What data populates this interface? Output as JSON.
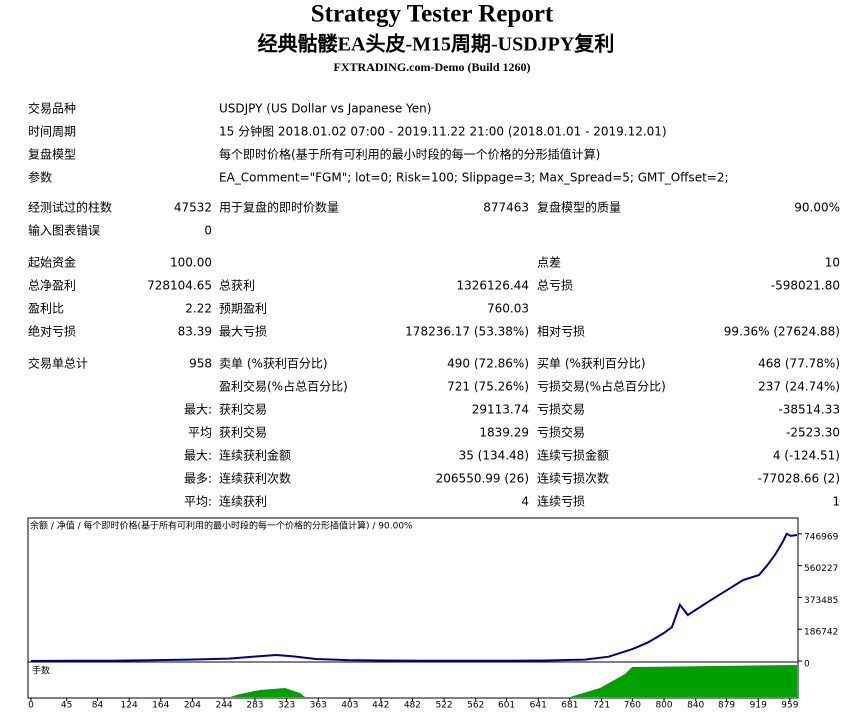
{
  "header": {
    "title": "Strategy Tester Report",
    "subtitle": "经典骷髅EA头皮-M15周期-USDJPY复利",
    "build": "FXTRADING.com-Demo (Build 1260)"
  },
  "settings": {
    "rows": [
      {
        "label": "交易品种",
        "value": "USDJPY (US Dollar vs Japanese Yen)"
      },
      {
        "label": "时间周期",
        "value": "15 分钟图 2018.01.02 07:00 - 2019.11.22 21:00 (2018.01.01 - 2019.12.01)"
      },
      {
        "label": "复盘模型",
        "value": "每个即时价格(基于所有可利用的最小时段的每一个价格的分形插值计算)"
      },
      {
        "label": "参数",
        "value": "EA_Comment=\"FGM\"; lot=0; Risk=100; Slippage=3; Max_Spread=5; GMT_Offset=2;"
      }
    ]
  },
  "stats": {
    "rows": [
      [
        {
          "label": "经测试过的柱数",
          "value": "47532"
        },
        {
          "label": "用于复盘的即时价数量",
          "value": "877463"
        },
        {
          "label": "复盘模型的质量",
          "value": "90.00%"
        }
      ],
      [
        {
          "label": "输入图表错误",
          "value": "0"
        },
        null,
        null
      ],
      [
        {
          "label": "起始资金",
          "value": "100.00"
        },
        null,
        {
          "label": "点差",
          "value": "10"
        }
      ],
      [
        {
          "label": "总净盈利",
          "value": "728104.65"
        },
        {
          "label": "总获利",
          "value": "1326126.44"
        },
        {
          "label": "总亏损",
          "value": "-598021.80"
        }
      ],
      [
        {
          "label": "盈利比",
          "value": "2.22"
        },
        {
          "label": "预期盈利",
          "value": "760.03"
        },
        null
      ],
      [
        {
          "label": "绝对亏损",
          "value": "83.39"
        },
        {
          "label": "最大亏损",
          "value": "178236.17 (53.38%)"
        },
        {
          "label": "相对亏损",
          "value": "99.36% (27624.88)"
        }
      ],
      [
        {
          "label": "交易单总计",
          "value": "958"
        },
        {
          "label": "卖单 (%获利百分比)",
          "value": "490 (72.86%)"
        },
        {
          "label": "买单 (%获利百分比)",
          "value": "468 (77.78%)"
        }
      ],
      [
        null,
        {
          "label": "盈利交易(%占总百分比)",
          "value": "721 (75.26%)"
        },
        {
          "label": "亏损交易(%占总百分比)",
          "value": "237 (24.74%)"
        }
      ],
      [
        {
          "label": "最大:"
        },
        {
          "label": "获利交易",
          "value": "29113.74"
        },
        {
          "label": "亏损交易",
          "value": "-38514.33"
        }
      ],
      [
        {
          "label": "平均"
        },
        {
          "label": "获利交易",
          "value": "1839.29"
        },
        {
          "label": "亏损交易",
          "value": "-2523.30"
        }
      ],
      [
        {
          "label": "最大:"
        },
        {
          "label": "连续获利金额",
          "value": "35 (134.48)"
        },
        {
          "label": "连续亏损金额",
          "value": "4 (-124.51)"
        }
      ],
      [
        {
          "label": "最多:"
        },
        {
          "label": "连续获利次数",
          "value": "206550.99 (26)"
        },
        {
          "label": "连续亏损次数",
          "value": "-77028.66 (2)"
        }
      ],
      [
        {
          "label": "平均:"
        },
        {
          "label": "连续获利",
          "value": "4"
        },
        {
          "label": "连续亏损",
          "value": "1"
        }
      ]
    ]
  },
  "chart_data": {
    "type": "line",
    "legend": "余额 / 净值 / 每个即时价格(基于所有可利用的最小时段的每一个价格的分形插值计算) / 90.00%",
    "volume_label": "手数",
    "x": [
      0,
      50,
      100,
      150,
      200,
      250,
      280,
      310,
      330,
      360,
      400,
      450,
      500,
      550,
      600,
      650,
      700,
      730,
      760,
      780,
      800,
      810,
      820,
      830,
      840,
      860,
      880,
      900,
      920,
      930,
      940,
      950,
      955,
      960,
      968
    ],
    "series": [
      {
        "name": "余额",
        "color": "#00008b",
        "values": [
          100,
          1000,
          2000,
          4000,
          8000,
          14000,
          25000,
          35000,
          28000,
          12000,
          5000,
          3000,
          2000,
          1500,
          1500,
          3000,
          8000,
          25000,
          70000,
          110000,
          165000,
          200000,
          330000,
          270000,
          300000,
          360000,
          418000,
          476000,
          505000,
          560000,
          622000,
          700000,
          746969,
          735000,
          740000
        ]
      }
    ],
    "xlim": [
      0,
      968
    ],
    "ylim": [
      0,
      840000
    ],
    "xticks": [
      0,
      45,
      84,
      124,
      164,
      204,
      244,
      283,
      323,
      363,
      403,
      442,
      482,
      522,
      562,
      601,
      641,
      681,
      721,
      760,
      800,
      840,
      879,
      919,
      959
    ],
    "yticks": [
      0,
      186742,
      373485,
      560227,
      746969
    ]
  }
}
